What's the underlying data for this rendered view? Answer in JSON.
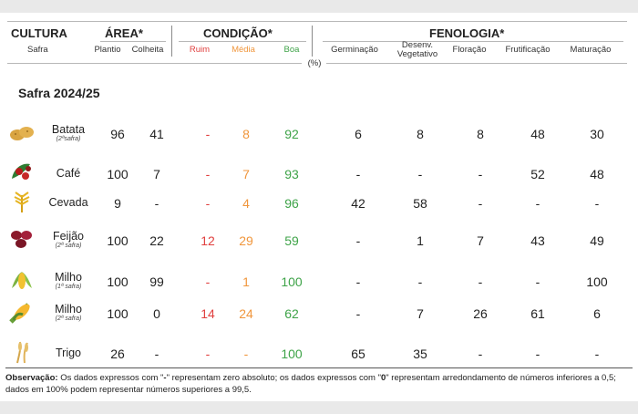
{
  "header": {
    "cultura": "CULTURA",
    "safra": "Safra",
    "area": "ÁREA*",
    "plantio": "Plantio",
    "colheita": "Colheita",
    "condicao": "CONDIÇÃO*",
    "ruim": "Ruim",
    "media": "Média",
    "boa": "Boa",
    "fenologia": "FENOLOGIA*",
    "germinacao": "Germinação",
    "desenv": "Desenv. Vegetativo",
    "floracao": "Floração",
    "frutificacao": "Frutificação",
    "maturacao": "Maturação",
    "unit": "(%)"
  },
  "section_title": "Safra 2024/25",
  "rows": [
    {
      "name": "Batata",
      "tag": "(2ªsafra)",
      "icon": "potato-icon",
      "plantio": "96",
      "colheita": "41",
      "ruim": "-",
      "media": "8",
      "boa": "92",
      "germ": "6",
      "desenv": "8",
      "flor": "8",
      "frut": "48",
      "mat": "30"
    },
    {
      "name": "Café",
      "tag": "",
      "icon": "coffee-icon",
      "plantio": "100",
      "colheita": "7",
      "ruim": "-",
      "media": "7",
      "boa": "93",
      "germ": "-",
      "desenv": "-",
      "flor": "-",
      "frut": "52",
      "mat": "48"
    },
    {
      "name": "Cevada",
      "tag": "",
      "icon": "barley-icon",
      "plantio": "9",
      "colheita": "-",
      "ruim": "-",
      "media": "4",
      "boa": "96",
      "germ": "42",
      "desenv": "58",
      "flor": "-",
      "frut": "-",
      "mat": "-"
    },
    {
      "name": "Feijão",
      "tag": "(2ª safra)",
      "icon": "bean-icon",
      "plantio": "100",
      "colheita": "22",
      "ruim": "12",
      "media": "29",
      "boa": "59",
      "germ": "-",
      "desenv": "1",
      "flor": "7",
      "frut": "43",
      "mat": "49"
    },
    {
      "name": "Milho",
      "tag": "(1ª safra)",
      "icon": "corn-icon",
      "plantio": "100",
      "colheita": "99",
      "ruim": "-",
      "media": "1",
      "boa": "100",
      "germ": "-",
      "desenv": "-",
      "flor": "-",
      "frut": "-",
      "mat": "100"
    },
    {
      "name": "Milho",
      "tag": "(2ª safra)",
      "icon": "corn-cob-icon",
      "plantio": "100",
      "colheita": "0",
      "ruim": "14",
      "media": "24",
      "boa": "62",
      "germ": "-",
      "desenv": "7",
      "flor": "26",
      "frut": "61",
      "mat": "6"
    },
    {
      "name": "Trigo",
      "tag": "",
      "icon": "wheat-icon",
      "plantio": "26",
      "colheita": "-",
      "ruim": "-",
      "media": "-",
      "boa": "100",
      "germ": "65",
      "desenv": "35",
      "flor": "-",
      "frut": "-",
      "mat": "-"
    }
  ],
  "note": {
    "label": "Observação:",
    "part1": " Os dados expressos com \"",
    "dash": "-",
    "part2": "\" representam zero absoluto; os dados expressos com \"",
    "zero": "0",
    "part3": "\" representam arredondamento de números inferiores a 0,5; dados em 100% podem representar números superiores a 99,5."
  }
}
